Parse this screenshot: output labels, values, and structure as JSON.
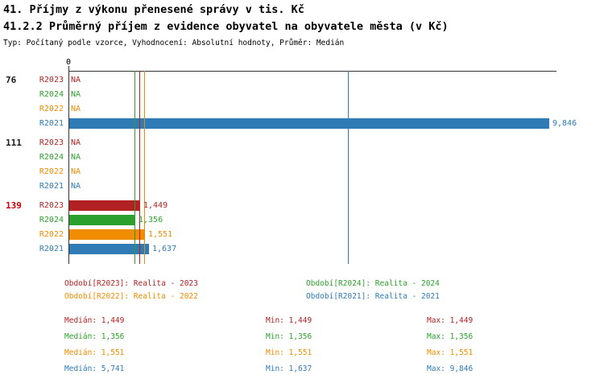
{
  "title1": "41. Příjmy z výkonu přenesené správy v tis. Kč",
  "title2": "41.2.2 Průměrný příjem z evidence obyvatel na obyvatele města (v Kč)",
  "subtitle": "Typ: Počítaný podle vzorce, Vyhodnocení: Absolutní hodnoty, Průměr: Medián",
  "na_label": "NA",
  "stats_labels": {
    "median": "Medián",
    "min": "Min",
    "max": "Max"
  },
  "colors": {
    "highlight": "#cc0000",
    "group_label": "#1a1a1a",
    "axis": "#333333",
    "background": "#ffffff"
  },
  "chart_data": {
    "type": "bar",
    "orientation": "horizontal",
    "title": "41.2.2 Průměrný příjem z evidence obyvatel na obyvatele města (v Kč)",
    "x_axis": {
      "min": 0,
      "max_scale": 10000,
      "tick_labels": [
        "0"
      ]
    },
    "legend_position": "bottom",
    "series": [
      {
        "key": "R2023",
        "label": "R2023",
        "legend": "Období[R2023]: Realita - 2023",
        "color": "#b22222",
        "median": 1449,
        "min": 1449,
        "max": 1449,
        "median_display": "1,449",
        "min_display": "1,449",
        "max_display": "1,449"
      },
      {
        "key": "R2024",
        "label": "R2024",
        "legend": "Období[R2024]: Realita - 2024",
        "color": "#2ca02c",
        "median": 1356,
        "min": 1356,
        "max": 1356,
        "median_display": "1,356",
        "min_display": "1,356",
        "max_display": "1,356"
      },
      {
        "key": "R2022",
        "label": "R2022",
        "legend": "Období[R2022]: Realita - 2022",
        "color": "#f08c00",
        "median": 1551,
        "min": 1551,
        "max": 1551,
        "median_display": "1,551",
        "min_display": "1,551",
        "max_display": "1,551"
      },
      {
        "key": "R2021",
        "label": "R2021",
        "legend": "Období[R2021]: Realita - 2021",
        "color": "#2f7bb6",
        "median": 5741,
        "min": 1637,
        "max": 9846,
        "median_display": "5,741",
        "min_display": "1,637",
        "max_display": "9,846"
      }
    ],
    "groups": [
      {
        "label": "76",
        "highlight": false,
        "values": [
          null,
          null,
          null,
          9846
        ],
        "value_displays": [
          "NA",
          "NA",
          "NA",
          "9,846"
        ]
      },
      {
        "label": "111",
        "highlight": false,
        "values": [
          null,
          null,
          null,
          null
        ],
        "value_displays": [
          "NA",
          "NA",
          "NA",
          "NA"
        ]
      },
      {
        "label": "139",
        "highlight": true,
        "values": [
          1449,
          1356,
          1551,
          1637
        ],
        "value_displays": [
          "1,449",
          "1,356",
          "1,551",
          "1,637"
        ]
      }
    ]
  }
}
